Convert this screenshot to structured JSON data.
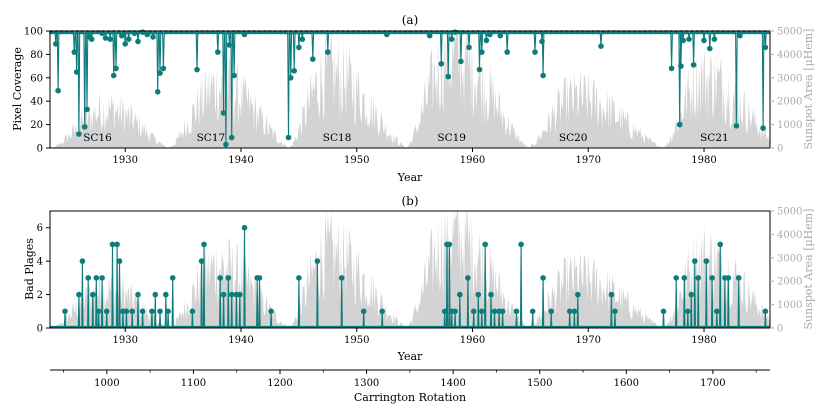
{
  "colors": {
    "accent": "#0e7c7b",
    "shade": "#d3d3d3",
    "axis": "#000000",
    "right_axis": "#aaaaaa"
  },
  "chart_data": [
    {
      "panel": "(a)",
      "type": "line",
      "title": "(a)",
      "xlabel": "Year",
      "ylabel": "Pixel Coverage",
      "ylabel_right": "Sunspot Area [μHem]",
      "xlim": [
        1923.5,
        1985.7
      ],
      "ylim": [
        0,
        100
      ],
      "ylim_right": [
        0,
        5000
      ],
      "xticks": [
        1930,
        1940,
        1950,
        1960,
        1970,
        1980
      ],
      "yticks": [
        0,
        20,
        40,
        60,
        80,
        100
      ],
      "yticks_right": [
        0,
        1000,
        2000,
        3000,
        4000,
        5000
      ],
      "cycle_labels": [
        {
          "label": "SC16",
          "x": 1927.6
        },
        {
          "label": "SC17",
          "x": 1937.4
        },
        {
          "label": "SC18",
          "x": 1948.3
        },
        {
          "label": "SC19",
          "x": 1958.2
        },
        {
          "label": "SC20",
          "x": 1968.7
        },
        {
          "label": "SC21",
          "x": 1980.9
        }
      ],
      "baseline": 99,
      "dips": [
        [
          1924.0,
          89
        ],
        [
          1924.2,
          49
        ],
        [
          1925.6,
          82
        ],
        [
          1925.8,
          65
        ],
        [
          1926.0,
          12
        ],
        [
          1926.5,
          18
        ],
        [
          1926.7,
          33
        ],
        [
          1926.9,
          95
        ],
        [
          1927.1,
          93
        ],
        [
          1928.0,
          98
        ],
        [
          1928.3,
          94
        ],
        [
          1928.7,
          93
        ],
        [
          1929.0,
          62
        ],
        [
          1929.2,
          68
        ],
        [
          1929.7,
          96
        ],
        [
          1930.0,
          89
        ],
        [
          1930.3,
          93
        ],
        [
          1930.8,
          98
        ],
        [
          1931.1,
          91
        ],
        [
          1931.5,
          99
        ],
        [
          1931.9,
          97
        ],
        [
          1932.4,
          95
        ],
        [
          1932.8,
          48
        ],
        [
          1933.0,
          64
        ],
        [
          1933.3,
          68
        ],
        [
          1936.2,
          67
        ],
        [
          1938.0,
          82
        ],
        [
          1938.5,
          30
        ],
        [
          1938.7,
          3
        ],
        [
          1939.0,
          88
        ],
        [
          1939.2,
          9
        ],
        [
          1939.4,
          62
        ],
        [
          1940.3,
          97
        ],
        [
          1944.1,
          9
        ],
        [
          1944.3,
          60
        ],
        [
          1944.6,
          66
        ],
        [
          1945.0,
          86
        ],
        [
          1945.3,
          93
        ],
        [
          1946.2,
          76
        ],
        [
          1947.5,
          82
        ],
        [
          1952.6,
          97
        ],
        [
          1956.3,
          96
        ],
        [
          1957.3,
          72
        ],
        [
          1957.9,
          61
        ],
        [
          1958.2,
          93
        ],
        [
          1958.5,
          99
        ],
        [
          1959.0,
          74
        ],
        [
          1959.7,
          86
        ],
        [
          1960.6,
          67
        ],
        [
          1960.8,
          82
        ],
        [
          1961.2,
          92
        ],
        [
          1961.5,
          97
        ],
        [
          1962.4,
          96
        ],
        [
          1963.0,
          82
        ],
        [
          1965.4,
          82
        ],
        [
          1966.0,
          91
        ],
        [
          1966.1,
          62
        ],
        [
          1971.1,
          87
        ],
        [
          1977.2,
          68
        ],
        [
          1977.9,
          20
        ],
        [
          1978.0,
          70
        ],
        [
          1978.2,
          92
        ],
        [
          1978.7,
          93
        ],
        [
          1979.1,
          71
        ],
        [
          1980.0,
          92
        ],
        [
          1980.5,
          85
        ],
        [
          1980.9,
          93
        ],
        [
          1982.8,
          19
        ],
        [
          1983.1,
          96
        ],
        [
          1985.1,
          17
        ],
        [
          1985.3,
          86
        ]
      ]
    },
    {
      "panel": "(b)",
      "type": "line",
      "title": "(b)",
      "xlabel": "Year",
      "ylabel": "Bad Plages",
      "ylabel_right": "Sunspot Area [μHem]",
      "xlabel2": "Carrington Rotation",
      "xlim": [
        1923.5,
        1985.7
      ],
      "ylim": [
        0,
        7
      ],
      "ylim_right": [
        0,
        5000
      ],
      "xticks": [
        1930,
        1940,
        1950,
        1960,
        1970,
        1980
      ],
      "yticks": [
        0,
        2,
        4,
        6
      ],
      "yticks_right": [
        0,
        1000,
        2000,
        3000,
        4000,
        5000
      ],
      "xticks2": [
        1000,
        1100,
        1200,
        1300,
        1400,
        1500,
        1600,
        1700
      ],
      "xticks2_ext": [
        950,
        1760
      ],
      "carrington_ref": {
        "rotation": 1000,
        "year": 1928.41,
        "rotations_per_year": 13.37
      },
      "points": [
        [
          1924.8,
          1
        ],
        [
          1926.0,
          2
        ],
        [
          1926.3,
          4
        ],
        [
          1926.8,
          3
        ],
        [
          1927.2,
          2
        ],
        [
          1927.5,
          3
        ],
        [
          1927.7,
          1
        ],
        [
          1928.0,
          3
        ],
        [
          1928.4,
          1
        ],
        [
          1928.9,
          5
        ],
        [
          1929.3,
          5
        ],
        [
          1929.5,
          4
        ],
        [
          1929.8,
          1
        ],
        [
          1930.1,
          1
        ],
        [
          1930.6,
          1
        ],
        [
          1931.1,
          2
        ],
        [
          1931.5,
          1
        ],
        [
          1932.3,
          1
        ],
        [
          1932.6,
          2
        ],
        [
          1933.0,
          1
        ],
        [
          1933.5,
          2
        ],
        [
          1933.7,
          1
        ],
        [
          1934.1,
          3
        ],
        [
          1935.8,
          1
        ],
        [
          1936.6,
          4
        ],
        [
          1936.8,
          5
        ],
        [
          1938.2,
          3
        ],
        [
          1938.5,
          2
        ],
        [
          1938.9,
          3
        ],
        [
          1939.2,
          2
        ],
        [
          1939.6,
          2
        ],
        [
          1939.9,
          2
        ],
        [
          1940.3,
          6
        ],
        [
          1941.4,
          3
        ],
        [
          1941.6,
          3
        ],
        [
          1942.6,
          1
        ],
        [
          1945.0,
          3
        ],
        [
          1946.6,
          4
        ],
        [
          1948.7,
          3
        ],
        [
          1950.6,
          1
        ],
        [
          1952.2,
          1
        ],
        [
          1957.6,
          1
        ],
        [
          1957.8,
          5
        ],
        [
          1958.0,
          5
        ],
        [
          1958.2,
          1
        ],
        [
          1958.5,
          1
        ],
        [
          1958.9,
          2
        ],
        [
          1959.6,
          3
        ],
        [
          1960.1,
          1
        ],
        [
          1960.5,
          2
        ],
        [
          1960.8,
          1
        ],
        [
          1961.1,
          5
        ],
        [
          1961.6,
          2
        ],
        [
          1961.9,
          1
        ],
        [
          1962.3,
          1
        ],
        [
          1962.6,
          1
        ],
        [
          1963.8,
          1
        ],
        [
          1964.2,
          5
        ],
        [
          1965.2,
          1
        ],
        [
          1966.1,
          3
        ],
        [
          1966.8,
          1
        ],
        [
          1968.4,
          1
        ],
        [
          1968.8,
          1
        ],
        [
          1969.1,
          2
        ],
        [
          1972.0,
          2
        ],
        [
          1972.3,
          1
        ],
        [
          1976.5,
          1
        ],
        [
          1977.6,
          3
        ],
        [
          1978.3,
          3
        ],
        [
          1978.6,
          1
        ],
        [
          1978.9,
          2
        ],
        [
          1979.2,
          4
        ],
        [
          1979.5,
          3
        ],
        [
          1980.2,
          4
        ],
        [
          1980.7,
          3
        ],
        [
          1981.1,
          1
        ],
        [
          1981.4,
          5
        ],
        [
          1981.8,
          3
        ],
        [
          1982.1,
          3
        ],
        [
          1983.0,
          3
        ],
        [
          1985.3,
          1
        ]
      ]
    }
  ],
  "sunspot_cycles": [
    {
      "label": "SC16",
      "start": 1923.6,
      "max": 1928.4,
      "end": 1933.7,
      "peak": 2400
    },
    {
      "label": "SC17",
      "start": 1933.7,
      "max": 1938.1,
      "end": 1944.1,
      "peak": 3800
    },
    {
      "label": "SC18",
      "start": 1944.1,
      "max": 1947.5,
      "end": 1954.2,
      "peak": 4600
    },
    {
      "label": "SC19",
      "start": 1954.2,
      "max": 1958.1,
      "end": 1964.7,
      "peak": 5700
    },
    {
      "label": "SC20",
      "start": 1964.7,
      "max": 1968.9,
      "end": 1976.4,
      "peak": 3100
    },
    {
      "label": "SC21",
      "start": 1976.4,
      "max": 1979.9,
      "end": 1986.6,
      "peak": 4300
    }
  ]
}
